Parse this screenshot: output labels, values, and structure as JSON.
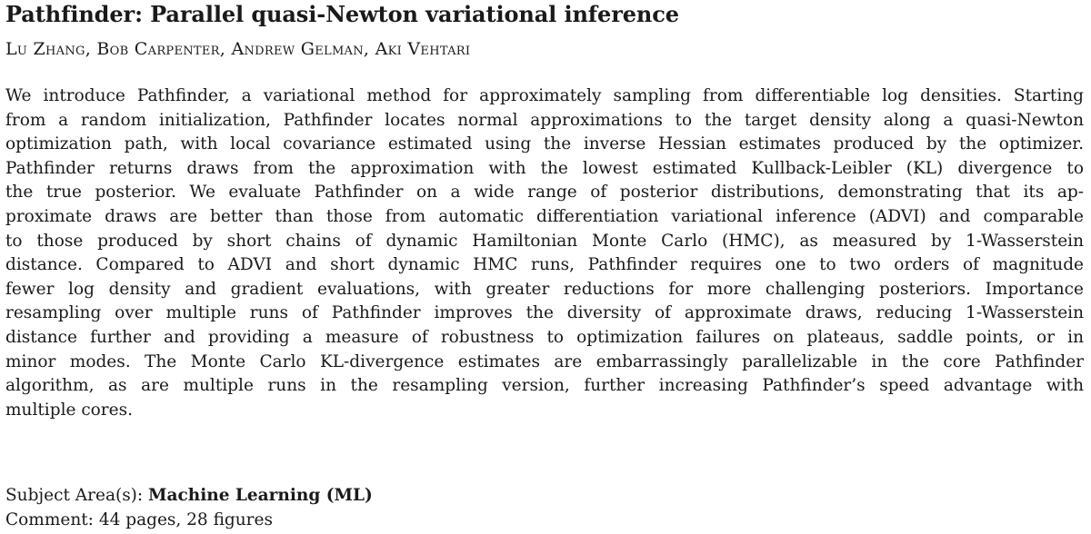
{
  "paper": {
    "title": "Pathfinder: Parallel quasi-Newton variational inference",
    "authors": "Lu Zhang, Bob Carpenter, Andrew Gelman, Aki Vehtari",
    "abstract_lines": [
      "We introduce Pathfinder, a variational method for approximately sampling from differentiable log densities. Starting",
      "from a random initialization, Pathfinder locates normal approximations to the target density along a quasi-Newton",
      "optimization path, with local covariance estimated using the inverse Hessian estimates produced by the optimizer.",
      "Pathfinder returns draws from the approximation with the lowest estimated Kullback-Leibler (KL) divergence to",
      "the true posterior. We evaluate Pathfinder on a wide range of posterior distributions, demonstrating that its ap-",
      "proximate draws are better than those from automatic differentiation variational inference (ADVI) and comparable",
      "to those produced by short chains of dynamic Hamiltonian Monte Carlo (HMC), as measured by 1-Wasserstein",
      "distance. Compared to ADVI and short dynamic HMC runs, Pathfinder requires one to two orders of magnitude",
      "fewer log density and gradient evaluations, with greater reductions for more challenging posteriors. Importance",
      "resampling over multiple runs of Pathfinder improves the diversity of approximate draws, reducing 1-Wasserstein",
      "distance further and providing a measure of robustness to optimization failures on plateaus, saddle points, or in",
      "minor modes. The Monte Carlo KL-divergence estimates are embarrassingly parallelizable in the core Pathfinder",
      "algorithm, as are multiple runs in the resampling version, further increasing Pathfinder’s speed advantage with",
      "multiple cores."
    ],
    "subject_label": "Subject Area(s):",
    "subject_value": "Machine Learning (ML)",
    "comment_label": "Comment:",
    "comment_value": "44 pages, 28 figures"
  }
}
